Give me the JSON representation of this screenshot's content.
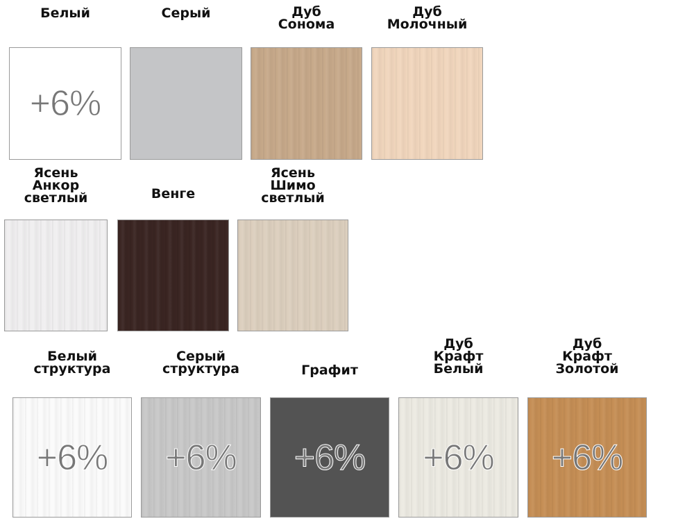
{
  "swatches": [
    {
      "label": "Белый",
      "color": "#ffffff",
      "badge": "+6%",
      "texture": "plain"
    },
    {
      "label": "Серый",
      "color": "#c4c5c7",
      "texture": "plain"
    },
    {
      "label": "Дуб\nСонома",
      "color": "#c7a98a",
      "texture": "wood"
    },
    {
      "label": "Дуб\nМолочный",
      "color": "#f1d6bd",
      "texture": "wood"
    },
    {
      "label": "Ясень\nАнкор\nсветлый",
      "color": "#f0eff0",
      "texture": "wood"
    },
    {
      "label": "Венге",
      "color": "#3a2522",
      "texture": "wood"
    },
    {
      "label": "Ясень\nШимо\nсветлый",
      "color": "#dccfbe",
      "texture": "wood"
    },
    {
      "label": "Белый\nструктура",
      "color": "#fbfbfb",
      "badge": "+6%",
      "texture": "wood"
    },
    {
      "label": "Серый\nструктура",
      "color": "#c8c8c8",
      "badge": "+6%",
      "texture": "wood"
    },
    {
      "label": "Графит",
      "color": "#535353",
      "badge": "+6%",
      "texture": "plain"
    },
    {
      "label": "Дуб\nКрафт\nБелый",
      "color": "#eceae2",
      "badge": "+6%",
      "texture": "wood"
    },
    {
      "label": "Дуб\nКрафт\nЗолотой",
      "color": "#c58e55",
      "badge": "+6%",
      "texture": "wood"
    }
  ]
}
